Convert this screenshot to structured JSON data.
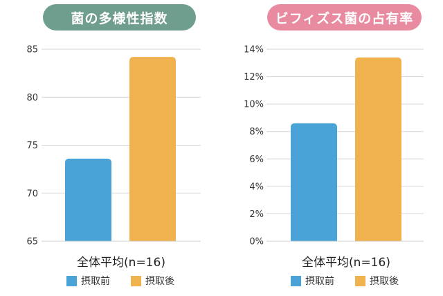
{
  "chart_data": [
    {
      "type": "bar",
      "title": "菌の多様性指数",
      "title_color": "#6f9e8e",
      "categories": [
        "全体平均(n=16)"
      ],
      "series": [
        {
          "name": "摂取前",
          "values": [
            73.6
          ],
          "color": "#4aa3d6"
        },
        {
          "name": "摂取後",
          "values": [
            84.2
          ],
          "color": "#f0b24f"
        }
      ],
      "ylim": [
        65,
        85
      ],
      "yticks": [
        "65",
        "70",
        "75",
        "80",
        "85"
      ],
      "ytick_values": [
        65,
        70,
        75,
        80,
        85
      ],
      "grid": true,
      "legend": "bottom"
    },
    {
      "type": "bar",
      "title": "ビフィズス菌の占有率",
      "title_color": "#e88ba1",
      "categories": [
        "全体平均(n=16)"
      ],
      "series": [
        {
          "name": "摂取前",
          "values": [
            8.6
          ],
          "color": "#4aa3d6"
        },
        {
          "name": "摂取後",
          "values": [
            13.4
          ],
          "color": "#f0b24f"
        }
      ],
      "ylim": [
        0,
        14
      ],
      "yticks": [
        "0%",
        "2%",
        "4%",
        "6%",
        "8%",
        "10%",
        "12%",
        "14%"
      ],
      "ytick_values": [
        0,
        2,
        4,
        6,
        8,
        10,
        12,
        14
      ],
      "grid": true,
      "legend": "bottom"
    }
  ]
}
